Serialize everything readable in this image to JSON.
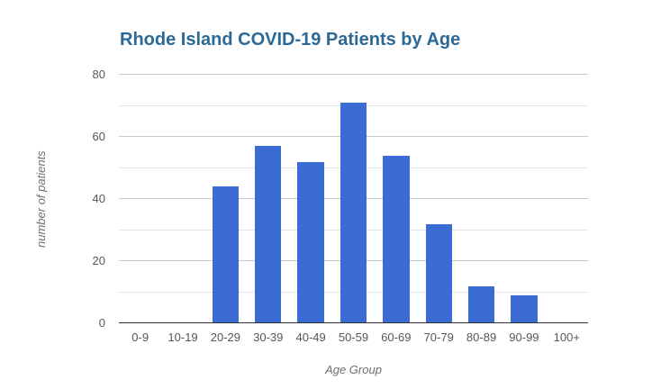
{
  "colors": {
    "background": "#ffffff",
    "title": "#2d6996",
    "bar": "#3b6cd4",
    "tick_label": "#575757",
    "axis_title": "#6f6f6f",
    "gridline_major": "#c9c9c9",
    "gridline_minor": "#e4e4e4",
    "axis_line": "#333333"
  },
  "chart_data": {
    "type": "bar",
    "title": "Rhode Island COVID-19 Patients by Age",
    "xlabel": "Age Group",
    "ylabel": "number of patients",
    "categories": [
      "0-9",
      "10-19",
      "20-29",
      "30-39",
      "40-49",
      "50-59",
      "60-69",
      "70-79",
      "80-89",
      "90-99",
      "100+"
    ],
    "values": [
      0,
      0,
      44,
      57,
      52,
      71,
      54,
      32,
      12,
      9,
      0
    ],
    "ylim": [
      0,
      80
    ],
    "yticks": [
      0,
      20,
      40,
      60,
      80
    ],
    "minor_gridline_step": 10,
    "grid": true,
    "legend": "none"
  }
}
